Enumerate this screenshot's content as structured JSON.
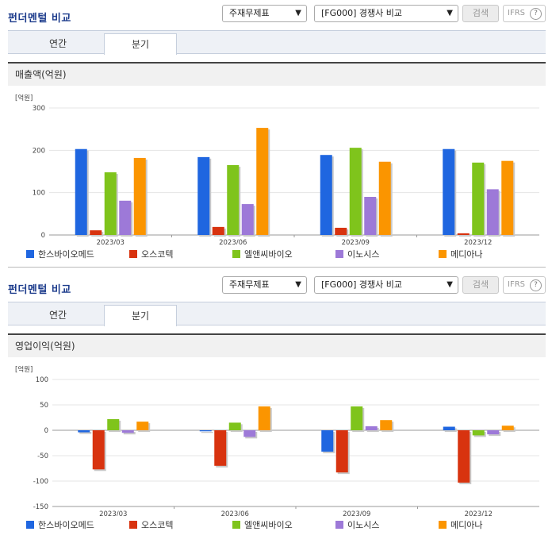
{
  "panels": [
    {
      "header": {
        "title": "펀더멘털 비교",
        "select_type": "주재무제표",
        "select_compare": "[FG000] 경쟁사 비교",
        "search_label": "검색",
        "ifrs_label": "IFRS",
        "help_label": "?"
      },
      "tabs": [
        {
          "label": "연간",
          "active": false
        },
        {
          "label": "분기",
          "active": true
        }
      ],
      "metric_label": "매출액(억원)"
    },
    {
      "header": {
        "title": "펀더멘털 비교",
        "select_type": "주재무제표",
        "select_compare": "[FG000] 경쟁사 비교",
        "search_label": "검색",
        "ifrs_label": "IFRS",
        "help_label": "?"
      },
      "tabs": [
        {
          "label": "연간",
          "active": false
        },
        {
          "label": "분기",
          "active": true
        }
      ],
      "metric_label": "영업이익(억원)"
    }
  ],
  "colors": {
    "한스바이오메드": "#1f66e0",
    "오스코텍": "#d8330f",
    "엘앤씨바이오": "#7fc41c",
    "이노시스": "#9d79d8",
    "메디아나": "#fb9500",
    "title": "#1d3c8c"
  },
  "chart_data": [
    {
      "type": "bar",
      "unit_label": "[억원]",
      "categories": [
        "2023/03",
        "2023/06",
        "2023/09",
        "2023/12"
      ],
      "ylim": [
        0,
        300
      ],
      "yticks": [
        0,
        100,
        200,
        300
      ],
      "grid": true,
      "legend": "bottom",
      "series": [
        {
          "name": "한스바이오메드",
          "values": [
            203,
            184,
            189,
            203
          ]
        },
        {
          "name": "오스코텍",
          "values": [
            11,
            19,
            17,
            4
          ]
        },
        {
          "name": "엘앤씨바이오",
          "values": [
            148,
            165,
            206,
            171
          ]
        },
        {
          "name": "이노시스",
          "values": [
            81,
            73,
            90,
            108
          ]
        },
        {
          "name": "메디아나",
          "values": [
            182,
            253,
            173,
            175
          ]
        }
      ]
    },
    {
      "type": "bar",
      "unit_label": "[억원]",
      "categories": [
        "2023/03",
        "2023/06",
        "2023/09",
        "2023/12"
      ],
      "ylim": [
        -150,
        100
      ],
      "yticks": [
        -150,
        -100,
        -50,
        0,
        50,
        100
      ],
      "grid": true,
      "legend": "bottom",
      "series": [
        {
          "name": "한스바이오메드",
          "values": [
            -4,
            -2,
            -42,
            7
          ]
        },
        {
          "name": "오스코텍",
          "values": [
            -77,
            -70,
            -83,
            -103
          ]
        },
        {
          "name": "엘앤씨바이오",
          "values": [
            22,
            15,
            47,
            -10
          ]
        },
        {
          "name": "이노시스",
          "values": [
            -5,
            -13,
            8,
            -8
          ]
        },
        {
          "name": "메디아나",
          "values": [
            17,
            47,
            20,
            9
          ]
        }
      ]
    }
  ]
}
